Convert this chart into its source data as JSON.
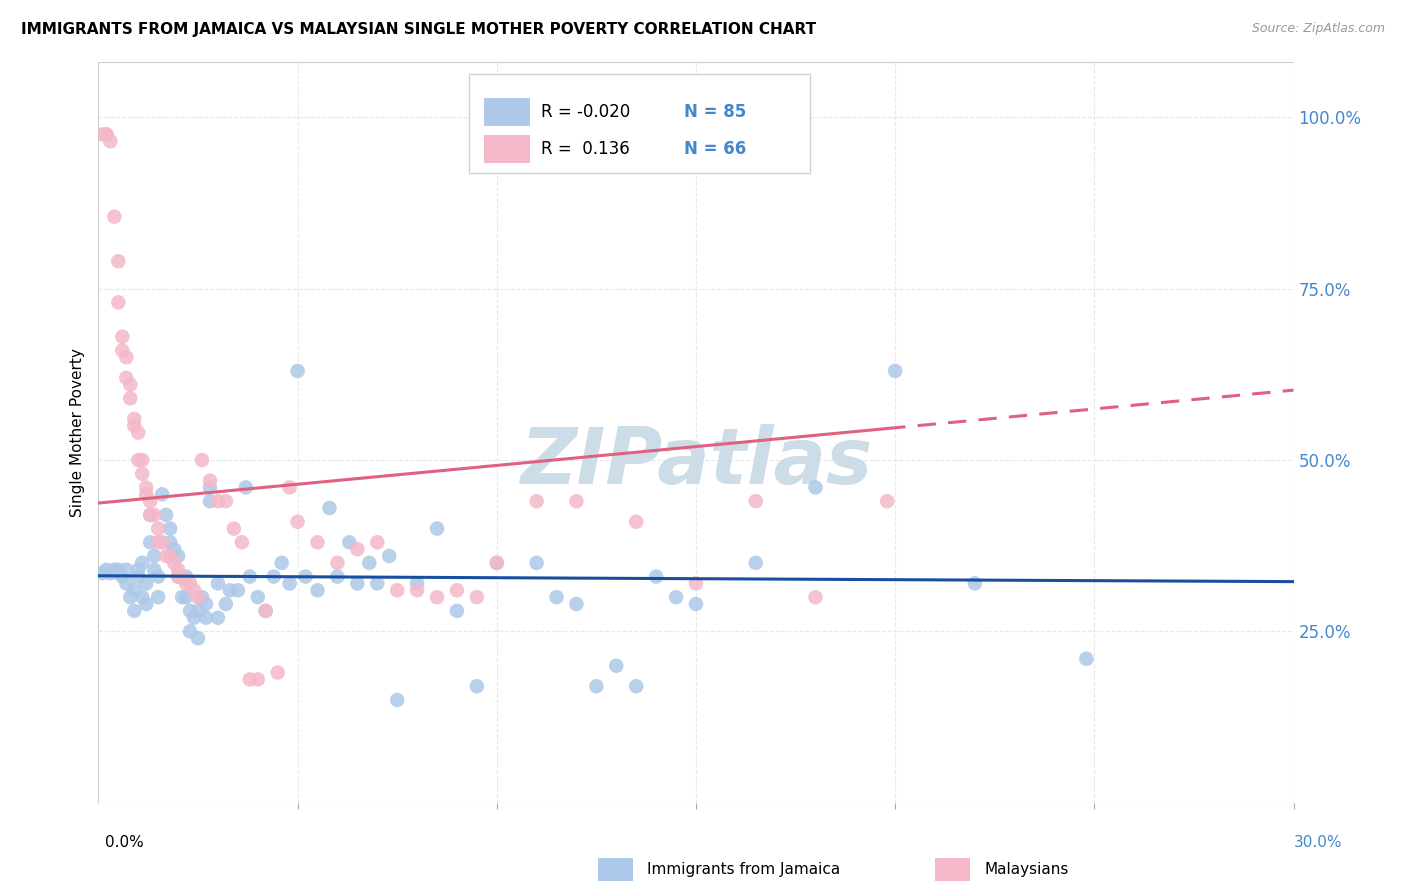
{
  "title": "IMMIGRANTS FROM JAMAICA VS MALAYSIAN SINGLE MOTHER POVERTY CORRELATION CHART",
  "source": "Source: ZipAtlas.com",
  "ylabel": "Single Mother Poverty",
  "ytick_labels": [
    "100.0%",
    "75.0%",
    "50.0%",
    "25.0%"
  ],
  "ytick_values": [
    1.0,
    0.75,
    0.5,
    0.25
  ],
  "xlim": [
    0.0,
    0.3
  ],
  "ylim": [
    0.0,
    1.08
  ],
  "legend_entries": [
    {
      "color": "#adc8e8",
      "r": "-0.020",
      "n": "85"
    },
    {
      "color": "#f4b8c8",
      "r": " 0.136",
      "n": "66"
    }
  ],
  "blue_scatter_color": "#adc8e8",
  "pink_scatter_color": "#f4b8c8",
  "blue_line_color": "#1a4fa0",
  "pink_line_color": "#e06080",
  "watermark": "ZIPatlas",
  "watermark_color": "#ccdde8",
  "background_color": "#ffffff",
  "grid_color": "#e8e8e8",
  "axis_label_color": "#4488cc",
  "jamaica_R": -0.02,
  "malaysia_R": 0.136,
  "jamaica_points": [
    [
      0.001,
      0.335
    ],
    [
      0.002,
      0.34
    ],
    [
      0.003,
      0.335
    ],
    [
      0.004,
      0.34
    ],
    [
      0.005,
      0.34
    ],
    [
      0.005,
      0.335
    ],
    [
      0.006,
      0.33
    ],
    [
      0.007,
      0.34
    ],
    [
      0.007,
      0.32
    ],
    [
      0.008,
      0.3
    ],
    [
      0.009,
      0.31
    ],
    [
      0.009,
      0.28
    ],
    [
      0.01,
      0.34
    ],
    [
      0.01,
      0.33
    ],
    [
      0.011,
      0.35
    ],
    [
      0.011,
      0.3
    ],
    [
      0.012,
      0.32
    ],
    [
      0.012,
      0.29
    ],
    [
      0.013,
      0.42
    ],
    [
      0.013,
      0.38
    ],
    [
      0.014,
      0.36
    ],
    [
      0.014,
      0.34
    ],
    [
      0.015,
      0.33
    ],
    [
      0.015,
      0.3
    ],
    [
      0.016,
      0.45
    ],
    [
      0.017,
      0.42
    ],
    [
      0.018,
      0.4
    ],
    [
      0.018,
      0.38
    ],
    [
      0.019,
      0.37
    ],
    [
      0.02,
      0.36
    ],
    [
      0.02,
      0.33
    ],
    [
      0.021,
      0.3
    ],
    [
      0.022,
      0.33
    ],
    [
      0.022,
      0.3
    ],
    [
      0.023,
      0.28
    ],
    [
      0.023,
      0.25
    ],
    [
      0.024,
      0.27
    ],
    [
      0.025,
      0.28
    ],
    [
      0.025,
      0.24
    ],
    [
      0.026,
      0.3
    ],
    [
      0.027,
      0.27
    ],
    [
      0.027,
      0.29
    ],
    [
      0.028,
      0.46
    ],
    [
      0.028,
      0.44
    ],
    [
      0.03,
      0.32
    ],
    [
      0.03,
      0.27
    ],
    [
      0.032,
      0.29
    ],
    [
      0.033,
      0.31
    ],
    [
      0.035,
      0.31
    ],
    [
      0.037,
      0.46
    ],
    [
      0.038,
      0.33
    ],
    [
      0.04,
      0.3
    ],
    [
      0.042,
      0.28
    ],
    [
      0.044,
      0.33
    ],
    [
      0.046,
      0.35
    ],
    [
      0.048,
      0.32
    ],
    [
      0.05,
      0.63
    ],
    [
      0.052,
      0.33
    ],
    [
      0.055,
      0.31
    ],
    [
      0.058,
      0.43
    ],
    [
      0.06,
      0.33
    ],
    [
      0.063,
      0.38
    ],
    [
      0.065,
      0.32
    ],
    [
      0.068,
      0.35
    ],
    [
      0.07,
      0.32
    ],
    [
      0.073,
      0.36
    ],
    [
      0.075,
      0.15
    ],
    [
      0.08,
      0.32
    ],
    [
      0.085,
      0.4
    ],
    [
      0.09,
      0.28
    ],
    [
      0.095,
      0.17
    ],
    [
      0.1,
      0.35
    ],
    [
      0.11,
      0.35
    ],
    [
      0.115,
      0.3
    ],
    [
      0.12,
      0.29
    ],
    [
      0.125,
      0.17
    ],
    [
      0.13,
      0.2
    ],
    [
      0.135,
      0.17
    ],
    [
      0.14,
      0.33
    ],
    [
      0.145,
      0.3
    ],
    [
      0.15,
      0.29
    ],
    [
      0.165,
      0.35
    ],
    [
      0.18,
      0.46
    ],
    [
      0.2,
      0.63
    ],
    [
      0.22,
      0.32
    ],
    [
      0.248,
      0.21
    ]
  ],
  "malaysia_points": [
    [
      0.001,
      0.975
    ],
    [
      0.002,
      0.975
    ],
    [
      0.002,
      0.975
    ],
    [
      0.003,
      0.965
    ],
    [
      0.004,
      0.855
    ],
    [
      0.005,
      0.79
    ],
    [
      0.005,
      0.73
    ],
    [
      0.006,
      0.68
    ],
    [
      0.006,
      0.66
    ],
    [
      0.007,
      0.65
    ],
    [
      0.007,
      0.62
    ],
    [
      0.008,
      0.61
    ],
    [
      0.008,
      0.59
    ],
    [
      0.009,
      0.56
    ],
    [
      0.009,
      0.55
    ],
    [
      0.01,
      0.54
    ],
    [
      0.01,
      0.5
    ],
    [
      0.011,
      0.5
    ],
    [
      0.011,
      0.48
    ],
    [
      0.012,
      0.46
    ],
    [
      0.012,
      0.45
    ],
    [
      0.013,
      0.44
    ],
    [
      0.013,
      0.42
    ],
    [
      0.014,
      0.42
    ],
    [
      0.015,
      0.4
    ],
    [
      0.015,
      0.38
    ],
    [
      0.016,
      0.38
    ],
    [
      0.017,
      0.36
    ],
    [
      0.018,
      0.36
    ],
    [
      0.019,
      0.35
    ],
    [
      0.02,
      0.34
    ],
    [
      0.02,
      0.33
    ],
    [
      0.021,
      0.33
    ],
    [
      0.022,
      0.32
    ],
    [
      0.023,
      0.32
    ],
    [
      0.024,
      0.31
    ],
    [
      0.025,
      0.3
    ],
    [
      0.026,
      0.5
    ],
    [
      0.028,
      0.47
    ],
    [
      0.03,
      0.44
    ],
    [
      0.032,
      0.44
    ],
    [
      0.034,
      0.4
    ],
    [
      0.036,
      0.38
    ],
    [
      0.038,
      0.18
    ],
    [
      0.04,
      0.18
    ],
    [
      0.042,
      0.28
    ],
    [
      0.045,
      0.19
    ],
    [
      0.048,
      0.46
    ],
    [
      0.05,
      0.41
    ],
    [
      0.055,
      0.38
    ],
    [
      0.06,
      0.35
    ],
    [
      0.065,
      0.37
    ],
    [
      0.07,
      0.38
    ],
    [
      0.075,
      0.31
    ],
    [
      0.08,
      0.31
    ],
    [
      0.085,
      0.3
    ],
    [
      0.09,
      0.31
    ],
    [
      0.095,
      0.3
    ],
    [
      0.1,
      0.35
    ],
    [
      0.11,
      0.44
    ],
    [
      0.12,
      0.44
    ],
    [
      0.135,
      0.41
    ],
    [
      0.15,
      0.32
    ],
    [
      0.165,
      0.44
    ],
    [
      0.18,
      0.3
    ],
    [
      0.198,
      0.44
    ]
  ]
}
